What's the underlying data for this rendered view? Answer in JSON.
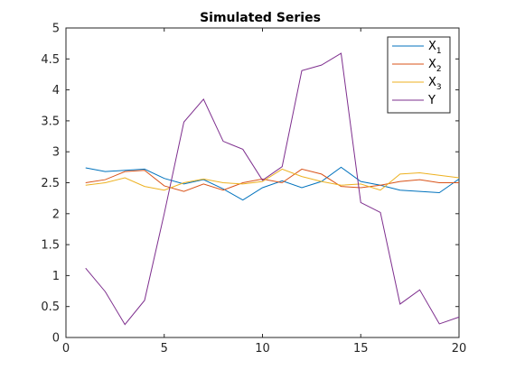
{
  "chart_data": {
    "type": "line",
    "title": "Simulated Series",
    "xlabel": "",
    "ylabel": "",
    "xlim": [
      0,
      20
    ],
    "ylim": [
      0,
      5
    ],
    "xticks": [
      "0",
      "5",
      "10",
      "15",
      "20"
    ],
    "yticks": [
      "0",
      "0.5",
      "1",
      "1.5",
      "2",
      "2.5",
      "3",
      "3.5",
      "4",
      "4.5",
      "5"
    ],
    "grid": false,
    "legend_position": "top-right",
    "x": [
      1,
      2,
      3,
      4,
      5,
      6,
      7,
      8,
      9,
      10,
      11,
      12,
      13,
      14,
      15,
      16,
      17,
      18,
      19,
      20
    ],
    "series": [
      {
        "name": "X",
        "subscript": "1",
        "color": "#0072BD",
        "values": [
          2.74,
          2.68,
          2.7,
          2.72,
          2.57,
          2.48,
          2.55,
          2.4,
          2.22,
          2.42,
          2.53,
          2.42,
          2.52,
          2.75,
          2.52,
          2.46,
          2.38,
          2.36,
          2.34,
          2.56
        ]
      },
      {
        "name": "X",
        "subscript": "2",
        "color": "#D95319",
        "values": [
          2.5,
          2.55,
          2.68,
          2.7,
          2.45,
          2.36,
          2.48,
          2.38,
          2.5,
          2.56,
          2.5,
          2.72,
          2.64,
          2.44,
          2.42,
          2.46,
          2.52,
          2.55,
          2.5,
          2.5
        ]
      },
      {
        "name": "X",
        "subscript": "3",
        "color": "#EDB120",
        "values": [
          2.46,
          2.5,
          2.58,
          2.44,
          2.38,
          2.5,
          2.56,
          2.5,
          2.48,
          2.52,
          2.72,
          2.6,
          2.52,
          2.46,
          2.48,
          2.38,
          2.64,
          2.66,
          2.62,
          2.58
        ]
      },
      {
        "name": "Y",
        "subscript": "",
        "color": "#7E2F8E",
        "values": [
          1.12,
          0.74,
          0.21,
          0.6,
          2.0,
          3.48,
          3.85,
          3.17,
          3.04,
          2.54,
          2.76,
          4.31,
          4.4,
          4.59,
          2.18,
          2.02,
          0.54,
          0.77,
          0.22,
          0.33
        ]
      }
    ]
  }
}
